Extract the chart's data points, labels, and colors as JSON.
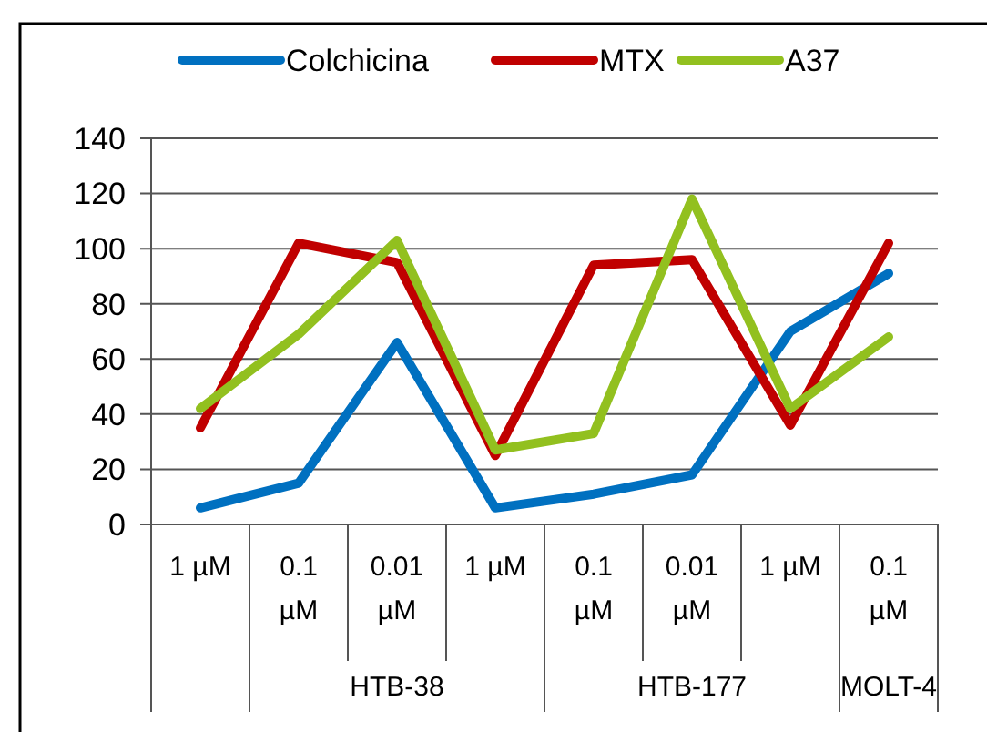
{
  "chart_data": {
    "type": "line",
    "categories": [
      "1 µM",
      "0.1 µM",
      "0.01 µM",
      "1 µM",
      "0.1 µM",
      "0.01 µM",
      "1 µM",
      "0.1 µM"
    ],
    "series": [
      {
        "name": "Colchicina",
        "color": "#0070c0",
        "values": [
          6,
          15,
          66,
          6,
          11,
          18,
          70,
          91
        ]
      },
      {
        "name": "MTX",
        "color": "#c00000",
        "values": [
          35,
          102,
          95,
          25,
          94,
          96,
          36,
          102
        ]
      },
      {
        "name": "A37",
        "color": "#92c01f",
        "values": [
          42,
          69,
          103,
          27,
          33,
          118,
          42,
          68
        ]
      }
    ],
    "ylim": [
      0,
      140
    ],
    "yticks": [
      0,
      20,
      40,
      60,
      80,
      100,
      120,
      140
    ],
    "grid": "y",
    "legend": "top",
    "line_style": "solid",
    "marker": "none",
    "annotations": [
      "HTB-38",
      "HTB-177",
      "MOLT-4"
    ]
  }
}
